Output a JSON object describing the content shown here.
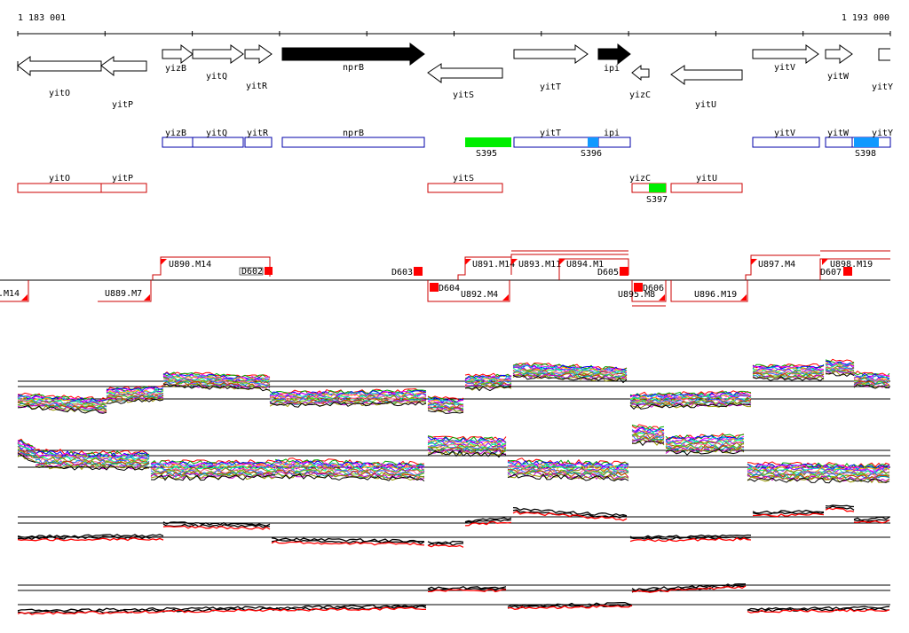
{
  "coords": {
    "start": "1 183 001",
    "end": "1 193 000"
  },
  "colors": {
    "forward_outline": "#000000",
    "forward_fill_highlight": "#000000",
    "annot_forward": "#0000aa",
    "annot_reverse": "#cc0000",
    "utr_red": "#ff0000",
    "sig_green": "#00ee00",
    "sig_blue": "#1199ff",
    "trace_black": "#000000",
    "trace_red": "#ff0000"
  },
  "genes": [
    {
      "name": "yitO",
      "strand": "-",
      "filled": false
    },
    {
      "name": "yitP",
      "strand": "-",
      "filled": false
    },
    {
      "name": "yizB",
      "strand": "+",
      "filled": false
    },
    {
      "name": "yitQ",
      "strand": "+",
      "filled": false
    },
    {
      "name": "yitR",
      "strand": "+",
      "filled": false
    },
    {
      "name": "nprB",
      "strand": "+",
      "filled": true
    },
    {
      "name": "yitS",
      "strand": "-",
      "filled": false
    },
    {
      "name": "yitT",
      "strand": "+",
      "filled": false
    },
    {
      "name": "ipi",
      "strand": "+",
      "filled": true
    },
    {
      "name": "yizC",
      "strand": "-",
      "filled": false
    },
    {
      "name": "yitU",
      "strand": "-",
      "filled": false
    },
    {
      "name": "yitV",
      "strand": "+",
      "filled": false
    },
    {
      "name": "yitW",
      "strand": "+",
      "filled": false
    },
    {
      "name": "yitY",
      "strand": "+",
      "filled": false
    }
  ],
  "annot_forward": [
    "yizB",
    "yitQ",
    "yitR",
    "nprB",
    "yitT",
    "ipi",
    "yitV",
    "yitW",
    "yitY"
  ],
  "annot_reverse": [
    "yitO",
    "yitP",
    "yitS",
    "yizC",
    "yitU"
  ],
  "signals": [
    {
      "label": "S395",
      "color": "green"
    },
    {
      "label": "S396",
      "color": "blue"
    },
    {
      "label": "S397",
      "color": "green"
    },
    {
      "label": "S398",
      "color": "blue"
    }
  ],
  "segments_up": [
    "U890.M14",
    "U891.M14",
    "U893.M11",
    "U894.M1",
    "U897.M4",
    "U898.M19"
  ],
  "segments_down": [
    ".M14",
    "U889.M7",
    "U892.M4",
    "U895.M8",
    "U896.M19"
  ],
  "breakpoints": [
    "D602",
    "D603",
    "D604",
    "D605",
    "D606",
    "D607"
  ]
}
